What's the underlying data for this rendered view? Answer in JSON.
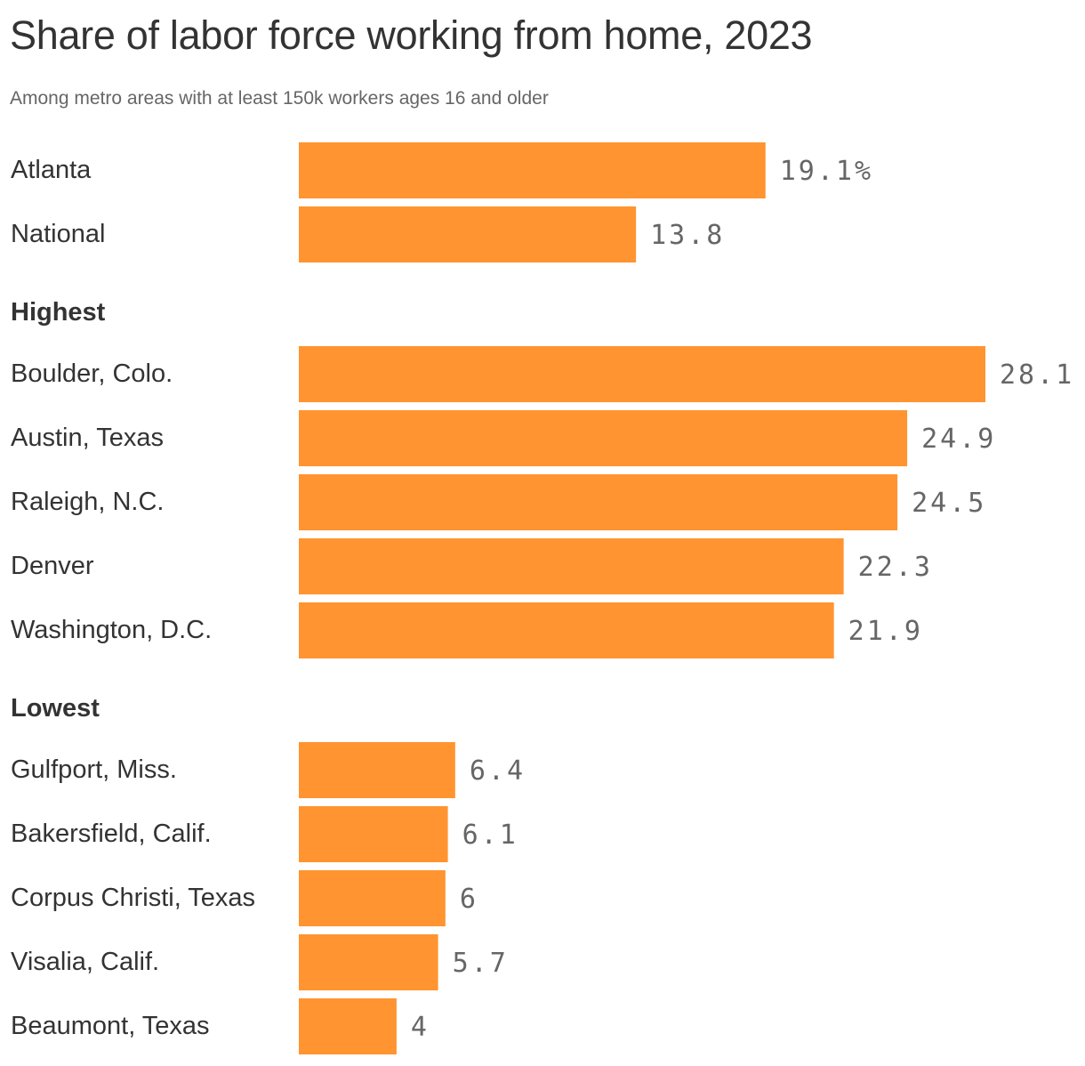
{
  "colors": {
    "bar": "#ff9430",
    "title": "#333333",
    "subtitle": "#666666",
    "label": "#333333",
    "value": "#666666"
  },
  "chart_data": {
    "type": "bar",
    "orientation": "horizontal",
    "title": "Share of labor force working from home, 2023",
    "subtitle": "Among metro areas with at least 150k workers ages 16 and older",
    "unit": "%",
    "xlim": [
      0,
      28.1
    ],
    "grid": false,
    "legend": "none",
    "groups": [
      {
        "label": "",
        "items": [
          {
            "category": "Atlanta",
            "value": 19.1,
            "value_label": "19.1%"
          },
          {
            "category": "National",
            "value": 13.8,
            "value_label": "13.8"
          }
        ]
      },
      {
        "label": "Highest",
        "items": [
          {
            "category": "Boulder, Colo.",
            "value": 28.1,
            "value_label": "28.1"
          },
          {
            "category": "Austin, Texas",
            "value": 24.9,
            "value_label": "24.9"
          },
          {
            "category": "Raleigh, N.C.",
            "value": 24.5,
            "value_label": "24.5"
          },
          {
            "category": "Denver",
            "value": 22.3,
            "value_label": "22.3"
          },
          {
            "category": "Washington, D.C.",
            "value": 21.9,
            "value_label": "21.9"
          }
        ]
      },
      {
        "label": "Lowest",
        "items": [
          {
            "category": "Gulfport, Miss.",
            "value": 6.4,
            "value_label": "6.4"
          },
          {
            "category": "Bakersfield, Calif.",
            "value": 6.1,
            "value_label": "6.1"
          },
          {
            "category": "Corpus Christi, Texas",
            "value": 6,
            "value_label": "6"
          },
          {
            "category": "Visalia, Calif.",
            "value": 5.7,
            "value_label": "5.7"
          },
          {
            "category": "Beaumont, Texas",
            "value": 4,
            "value_label": "4"
          }
        ]
      }
    ]
  }
}
